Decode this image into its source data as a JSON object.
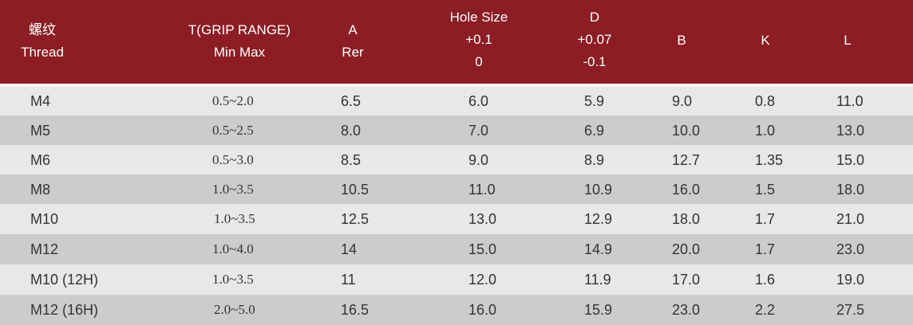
{
  "header": {
    "thread": [
      "螺纹",
      "Thread"
    ],
    "grip": [
      "T(GRIP RANGE)",
      "Min Max"
    ],
    "a": [
      "A",
      "Rer"
    ],
    "hole": [
      "Hole Size",
      "+0.1",
      "0"
    ],
    "d": [
      "D",
      "+0.07",
      "-0.1"
    ],
    "b": [
      "B"
    ],
    "k": [
      "K"
    ],
    "l": [
      "L"
    ]
  },
  "rows": [
    {
      "thread": "M4",
      "grip": "0.5~2.0",
      "a": "6.5",
      "hole": "6.0",
      "d": "5.9",
      "b": "9.0",
      "k": "0.8",
      "l": "11.0"
    },
    {
      "thread": "M5",
      "grip": "0.5~2.5",
      "a": "8.0",
      "hole": "7.0",
      "d": "6.9",
      "b": "10.0",
      "k": "1.0",
      "l": "13.0"
    },
    {
      "thread": "M6",
      "grip": "0.5~3.0",
      "a": "8.5",
      "hole": "9.0",
      "d": "8.9",
      "b": "12.7",
      "k": "1.35",
      "l": "15.0"
    },
    {
      "thread": "M8",
      "grip": "1.0~3.5",
      "a": "10.5",
      "hole": "11.0",
      "d": "10.9",
      "b": "16.0",
      "k": "1.5",
      "l": "18.0"
    },
    {
      "thread": "M10",
      "grip": "1.0~3.5",
      "a": "12.5",
      "hole": "13.0",
      "d": "12.9",
      "b": "18.0",
      "k": "1.7",
      "l": "21.0"
    },
    {
      "thread": "M12",
      "grip": "1.0~4.0",
      "a": "14",
      "hole": "15.0",
      "d": "14.9",
      "b": "20.0",
      "k": "1.7",
      "l": "23.0"
    },
    {
      "thread": "M10 (12H)",
      "grip": "1.0~3.5",
      "a": "11",
      "hole": "12.0",
      "d": "11.9",
      "b": "17.0",
      "k": "1.6",
      "l": "19.0"
    },
    {
      "thread": "M12 (16H)",
      "grip": "2.0~5.0",
      "a": "16.5",
      "hole": "16.0",
      "d": "15.9",
      "b": "23.0",
      "k": "2.2",
      "l": "27.5"
    }
  ],
  "colors": {
    "header_bg": "#8c1d24",
    "header_text": "#ffffff",
    "row_light": "#e8e8e8",
    "row_dark": "#cccccc",
    "cell_text": "#333333"
  }
}
